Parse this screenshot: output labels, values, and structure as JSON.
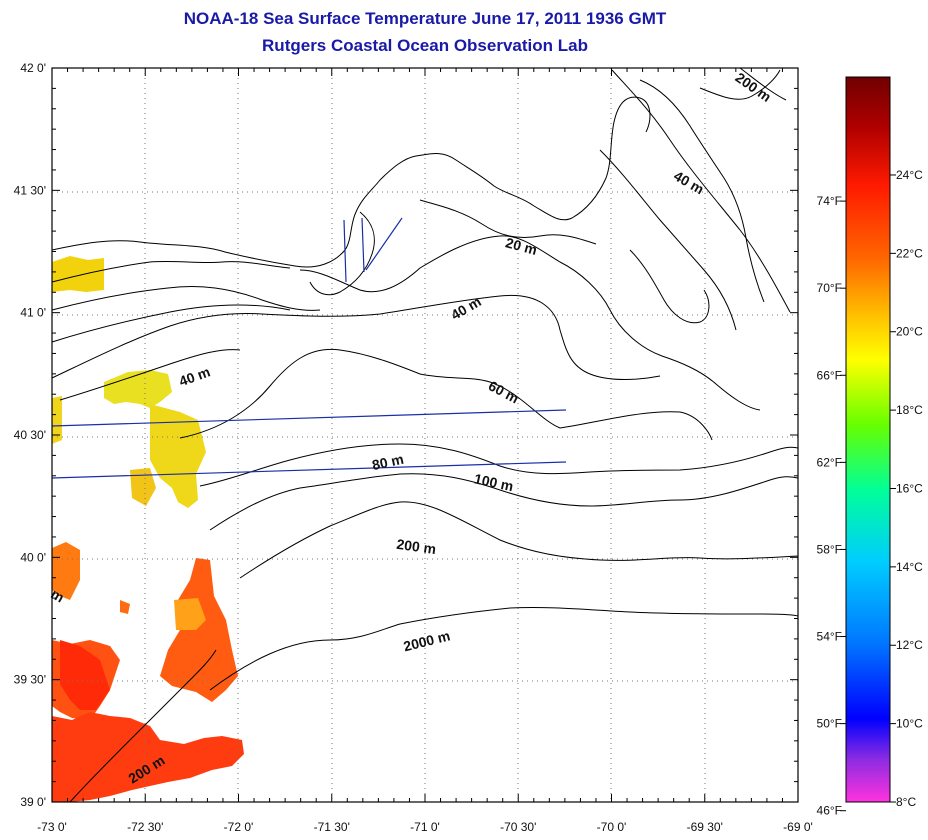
{
  "title": {
    "line1": "NOAA-18 Sea Surface Temperature June 17, 2011 1936 GMT",
    "line2": "Rutgers Coastal Ocean Observation Lab"
  },
  "map": {
    "lon_range": [
      -73.0,
      -69.0
    ],
    "lat_range": [
      39.0,
      42.0
    ],
    "lon_ticks": [
      {
        "v": -73.0,
        "label": "-73 0'"
      },
      {
        "v": -72.5,
        "label": "-72 30'"
      },
      {
        "v": -72.0,
        "label": "-72 0'"
      },
      {
        "v": -71.5,
        "label": "-71 30'"
      },
      {
        "v": -71.0,
        "label": "-71 0'"
      },
      {
        "v": -70.5,
        "label": "-70 30'"
      },
      {
        "v": -70.0,
        "label": "-70 0'"
      },
      {
        "v": -69.5,
        "label": "-69 30'"
      },
      {
        "v": -69.0,
        "label": "-69 0'"
      }
    ],
    "lat_ticks": [
      {
        "v": 42.0,
        "label": "42 0'"
      },
      {
        "v": 41.5,
        "label": "41 30'"
      },
      {
        "v": 41.0,
        "label": "41 0'"
      },
      {
        "v": 40.5,
        "label": "40 30'"
      },
      {
        "v": 40.0,
        "label": "40 0'"
      },
      {
        "v": 39.5,
        "label": "39 30'"
      },
      {
        "v": 39.0,
        "label": "39 0'"
      }
    ],
    "grid": "dotted",
    "contour_labels": [
      "200 m",
      "40 m",
      "20 m",
      "40 m",
      "40 m",
      "60 m",
      "80 m",
      "100 m",
      "200 m",
      "2000 m",
      "200 m"
    ]
  },
  "colorbar": {
    "celsius": [
      {
        "v": 24,
        "label": "24°C"
      },
      {
        "v": 22,
        "label": "22°C"
      },
      {
        "v": 20,
        "label": "20°C"
      },
      {
        "v": 18,
        "label": "18°C"
      },
      {
        "v": 16,
        "label": "16°C"
      },
      {
        "v": 14,
        "label": "14°C"
      },
      {
        "v": 12,
        "label": "12°C"
      },
      {
        "v": 10,
        "label": "10°C"
      },
      {
        "v": 8,
        "label": "8°C"
      }
    ],
    "fahrenheit": [
      {
        "v": 74,
        "label": "74°F"
      },
      {
        "v": 70,
        "label": "70°F"
      },
      {
        "v": 66,
        "label": "66°F"
      },
      {
        "v": 62,
        "label": "62°F"
      },
      {
        "v": 58,
        "label": "58°F"
      },
      {
        "v": 54,
        "label": "54°F"
      },
      {
        "v": 50,
        "label": "50°F"
      },
      {
        "v": 46,
        "label": "46°F"
      }
    ],
    "range_c": [
      8,
      26.5
    ],
    "colors": [
      "#ff33dd",
      "#8a2be2",
      "#0000ff",
      "#0077ff",
      "#00ccff",
      "#00ff99",
      "#66ff00",
      "#ffff00",
      "#ffcc00",
      "#ff6600",
      "#ff1a00",
      "#b00000",
      "#700000"
    ]
  }
}
